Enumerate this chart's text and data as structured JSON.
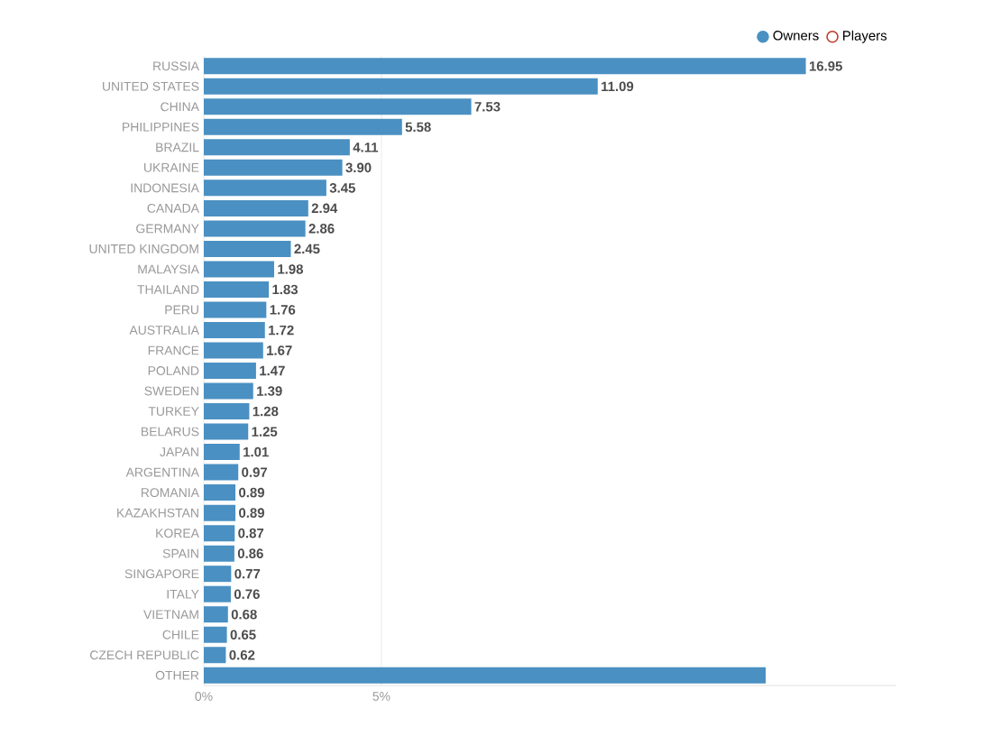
{
  "chart_data": {
    "type": "bar",
    "orientation": "horizontal",
    "categories": [
      "RUSSIA",
      "UNITED STATES",
      "CHINA",
      "PHILIPPINES",
      "BRAZIL",
      "UKRAINE",
      "INDONESIA",
      "CANADA",
      "GERMANY",
      "UNITED KINGDOM",
      "MALAYSIA",
      "THAILAND",
      "PERU",
      "AUSTRALIA",
      "FRANCE",
      "POLAND",
      "SWEDEN",
      "TURKEY",
      "BELARUS",
      "JAPAN",
      "ARGENTINA",
      "ROMANIA",
      "KAZAKHSTAN",
      "KOREA",
      "SPAIN",
      "SINGAPORE",
      "ITALY",
      "VIETNAM",
      "CHILE",
      "CZECH REPUBLIC",
      "OTHER"
    ],
    "series": [
      {
        "name": "Owners",
        "color": "#4a90c2",
        "values": [
          16.95,
          11.09,
          7.53,
          5.58,
          4.11,
          3.9,
          3.45,
          2.94,
          2.86,
          2.45,
          1.98,
          1.83,
          1.76,
          1.72,
          1.67,
          1.47,
          1.39,
          1.28,
          1.25,
          1.01,
          0.97,
          0.89,
          0.89,
          0.87,
          0.86,
          0.77,
          0.76,
          0.68,
          0.65,
          0.62,
          15.82
        ],
        "value_labels": [
          "16.95",
          "11.09",
          "7.53",
          "5.58",
          "4.11",
          "3.90",
          "3.45",
          "2.94",
          "2.86",
          "2.45",
          "1.98",
          "1.83",
          "1.76",
          "1.72",
          "1.67",
          "1.47",
          "1.39",
          "1.28",
          "1.25",
          "1.01",
          "0.97",
          "0.89",
          "0.89",
          "0.87",
          "0.86",
          "0.77",
          "0.76",
          "0.68",
          "0.65",
          "0.62",
          null
        ]
      },
      {
        "name": "Players",
        "color": "#c0392b",
        "values": [
          null,
          null,
          null,
          null,
          null,
          null,
          null,
          null,
          null,
          null,
          null,
          null,
          null,
          null,
          null,
          null,
          null,
          null,
          null,
          null,
          null,
          null,
          null,
          null,
          null,
          null,
          null,
          null,
          null,
          null,
          null
        ]
      }
    ],
    "xlim": [
      0,
      19.5
    ],
    "xticks": [
      {
        "value": 0,
        "label": "0%"
      },
      {
        "value": 5,
        "label": "5%"
      }
    ],
    "grid": "x",
    "legend": "top right",
    "marker": "circle"
  }
}
